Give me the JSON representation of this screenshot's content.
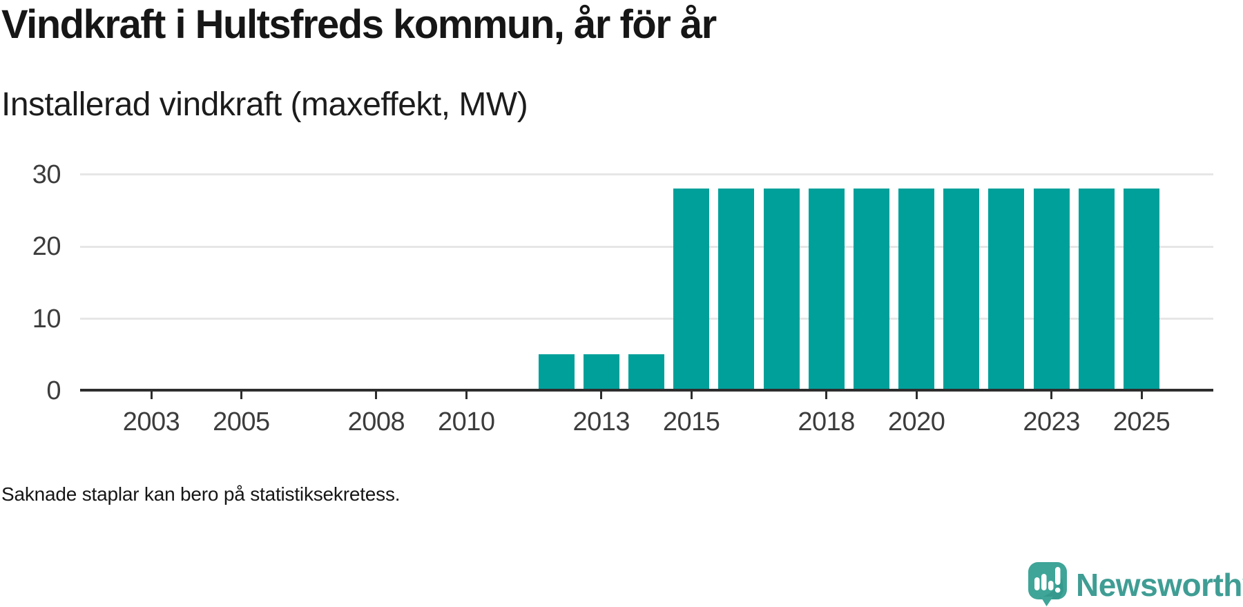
{
  "header": {
    "title": "Vindkraft i Hultsfreds kommun, år för år",
    "subtitle": "Installerad vindkraft (maxeffekt, MW)"
  },
  "footer": {
    "note": "Saknade staplar kan bero på statistiksekretess."
  },
  "branding": {
    "name": "Newsworthy",
    "icon": "newsworthy-speech-bubble-barchart-icon",
    "icon_color": "#3fa598",
    "text_color": "#3f9d94"
  },
  "colors": {
    "bar": "#00a09a",
    "grid": "#e6e6e6",
    "axis": "#2d2d2d",
    "label": "#3c3c3c",
    "title": "#161616"
  },
  "chart_data": {
    "type": "bar",
    "title": "Vindkraft i Hultsfreds kommun, år för år",
    "subtitle": "Installerad vindkraft (maxeffekt, MW)",
    "ylabel": "Installerad vindkraft (maxeffekt, MW)",
    "xlabel": "",
    "categories": [
      2002,
      2003,
      2004,
      2005,
      2006,
      2007,
      2008,
      2009,
      2010,
      2011,
      2012,
      2013,
      2014,
      2015,
      2016,
      2017,
      2018,
      2019,
      2020,
      2021,
      2022,
      2023,
      2024,
      2025
    ],
    "values": [
      null,
      null,
      null,
      null,
      null,
      null,
      null,
      null,
      null,
      null,
      5.1,
      5.1,
      5.1,
      28.1,
      28.1,
      28.1,
      28.1,
      28.1,
      28.1,
      28.1,
      28.1,
      28.1,
      28.1,
      28.1
    ],
    "x_tick_labels": [
      "2003",
      "2005",
      "2008",
      "2010",
      "2013",
      "2015",
      "2018",
      "2020",
      "2023",
      "2025"
    ],
    "y_ticks": [
      "0",
      "10",
      "20",
      "30"
    ],
    "ylim": [
      0,
      30
    ],
    "grid": "horizontal-only",
    "legend": "none",
    "bar_color": "#00a09a",
    "missing_data_note": "Saknade staplar kan bero på statistiksekretess."
  }
}
